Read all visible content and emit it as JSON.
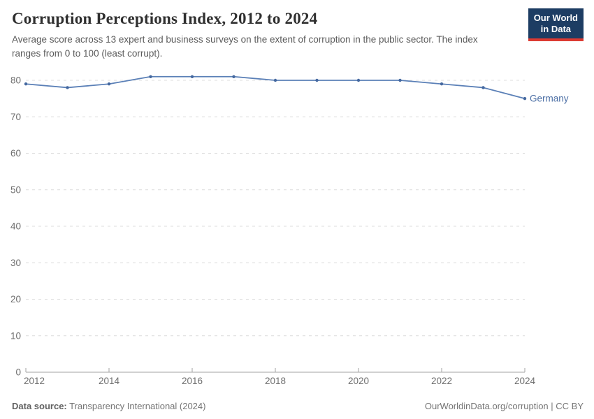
{
  "header": {
    "title": "Corruption Perceptions Index, 2012 to 2024",
    "subtitle": "Average score across 13 expert and business surveys on the extent of corruption in the public sector. The index ranges from 0 to 100 (least corrupt).",
    "logo_line1": "Our World",
    "logo_line2": "in Data"
  },
  "chart_data": {
    "type": "line",
    "title": "Corruption Perceptions Index, 2012 to 2024",
    "xlabel": "",
    "ylabel": "",
    "x": [
      2012,
      2013,
      2014,
      2015,
      2016,
      2017,
      2018,
      2019,
      2020,
      2021,
      2022,
      2023,
      2024
    ],
    "series": [
      {
        "name": "Germany",
        "values": [
          79,
          78,
          79,
          81,
          81,
          81,
          80,
          80,
          80,
          80,
          79,
          78,
          75
        ]
      }
    ],
    "xticks": [
      2012,
      2014,
      2016,
      2018,
      2020,
      2022,
      2024
    ],
    "yticks": [
      0,
      10,
      20,
      30,
      40,
      50,
      60,
      70,
      80
    ],
    "xlim": [
      2012,
      2024
    ],
    "ylim": [
      0,
      84
    ],
    "grid": "horizontal-dashed",
    "legend_position": "end-of-line-label"
  },
  "footer": {
    "datasource_label": "Data source:",
    "datasource_value": " Transparency International (2024)",
    "link": "OurWorldinData.org/corruption | CC BY"
  },
  "colors": {
    "line": "#5b80b7",
    "marker": "#44689f",
    "series_label": "#4c6fa5",
    "gridline": "#dcdcdc",
    "axis": "#a3a3a3",
    "tick_label": "#6e6e6e",
    "logo_bg": "#1d3d63",
    "logo_accent": "#dc3a32"
  }
}
